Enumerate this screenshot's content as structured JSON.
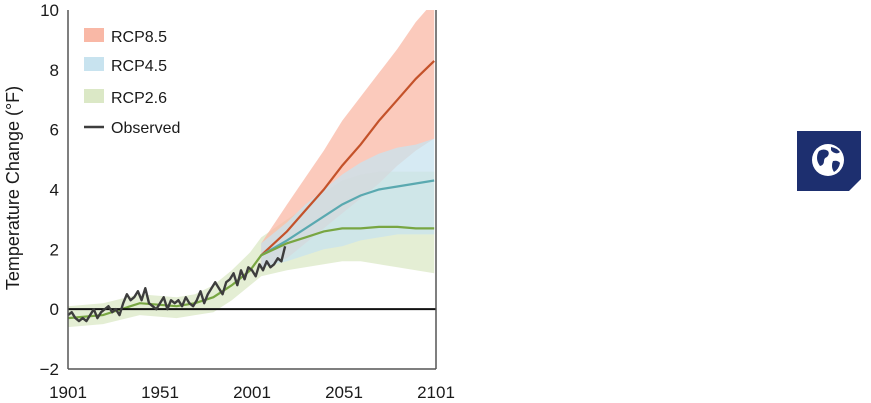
{
  "chart_data": {
    "type": "area",
    "xlabel": "",
    "ylabel": "Temperature Change (°F)",
    "xlim": [
      1901,
      2101
    ],
    "ylim": [
      -2,
      10
    ],
    "xticks": [
      "1901",
      "1951",
      "2001",
      "2051",
      "2101"
    ],
    "yticks": [
      "−2",
      "0",
      "2",
      "4",
      "6",
      "8",
      "10"
    ],
    "baseline": 0,
    "legend_position": "top-left",
    "series": [
      {
        "name": "RCP8.5",
        "line_color": "#c4522a",
        "fill_color": "#f9b8a6",
        "x": [
          2006,
          2020,
          2030,
          2040,
          2050,
          2060,
          2070,
          2080,
          2090,
          2100
        ],
        "y": [
          1.8,
          2.6,
          3.3,
          4.0,
          4.8,
          5.5,
          6.3,
          7.0,
          7.7,
          8.3
        ],
        "upper": [
          2.2,
          3.5,
          4.4,
          5.3,
          6.3,
          7.1,
          7.9,
          8.7,
          9.6,
          10.3
        ],
        "lower": [
          1.4,
          1.7,
          2.2,
          2.7,
          3.2,
          3.7,
          4.2,
          4.8,
          5.3,
          5.7
        ]
      },
      {
        "name": "RCP4.5",
        "line_color": "#5aa9b0",
        "fill_color": "#c8e3ef",
        "x": [
          2006,
          2020,
          2030,
          2040,
          2050,
          2060,
          2070,
          2080,
          2090,
          2100
        ],
        "y": [
          1.8,
          2.3,
          2.7,
          3.1,
          3.5,
          3.8,
          4.0,
          4.1,
          4.2,
          4.3
        ],
        "upper": [
          2.2,
          2.9,
          3.5,
          4.0,
          4.5,
          4.9,
          5.2,
          5.4,
          5.5,
          5.7
        ],
        "lower": [
          1.4,
          1.6,
          1.8,
          2.0,
          2.1,
          2.3,
          2.4,
          2.5,
          2.5,
          2.5
        ]
      },
      {
        "name": "RCP2.6",
        "line_color": "#78a642",
        "fill_color": "#dbe8c6",
        "x": [
          1901,
          1920,
          1940,
          1960,
          1970,
          1980,
          1990,
          2000,
          2006,
          2020,
          2030,
          2040,
          2050,
          2060,
          2070,
          2080,
          2090,
          2100
        ],
        "y": [
          -0.3,
          -0.2,
          0.2,
          0.1,
          0.2,
          0.4,
          0.8,
          1.3,
          1.8,
          2.2,
          2.4,
          2.6,
          2.7,
          2.7,
          2.75,
          2.75,
          2.7,
          2.7
        ],
        "upper": [
          0.1,
          0.2,
          0.5,
          0.4,
          0.5,
          0.8,
          1.3,
          1.9,
          2.4,
          3.0,
          3.4,
          3.9,
          4.3,
          4.5,
          4.6,
          4.6,
          4.6,
          4.6
        ],
        "lower": [
          -0.6,
          -0.5,
          -0.2,
          -0.3,
          -0.2,
          -0.1,
          0.3,
          0.8,
          1.1,
          1.3,
          1.4,
          1.5,
          1.6,
          1.6,
          1.5,
          1.4,
          1.3,
          1.2
        ]
      },
      {
        "name": "Observed",
        "line_color": "#3d3d3d",
        "x": [
          1901,
          1903,
          1905,
          1907,
          1909,
          1911,
          1913,
          1915,
          1917,
          1919,
          1921,
          1923,
          1925,
          1927,
          1929,
          1931,
          1933,
          1935,
          1937,
          1939,
          1941,
          1943,
          1945,
          1947,
          1949,
          1951,
          1953,
          1955,
          1957,
          1959,
          1961,
          1963,
          1965,
          1967,
          1969,
          1971,
          1973,
          1975,
          1977,
          1979,
          1981,
          1983,
          1985,
          1987,
          1989,
          1991,
          1993,
          1995,
          1997,
          1999,
          2001,
          2003,
          2005,
          2007,
          2009,
          2011,
          2013,
          2015,
          2017,
          2019
        ],
        "y": [
          -0.2,
          -0.1,
          -0.3,
          -0.4,
          -0.3,
          -0.4,
          -0.2,
          0.0,
          -0.3,
          -0.1,
          0.0,
          0.1,
          -0.1,
          0.0,
          -0.2,
          0.2,
          0.5,
          0.3,
          0.4,
          0.6,
          0.3,
          0.7,
          0.2,
          0.1,
          0.0,
          0.2,
          0.4,
          0.0,
          0.3,
          0.2,
          0.3,
          0.1,
          0.4,
          0.2,
          0.1,
          0.3,
          0.6,
          0.2,
          0.5,
          0.7,
          0.9,
          0.7,
          0.5,
          0.9,
          1.0,
          1.2,
          0.8,
          1.3,
          1.0,
          1.4,
          1.3,
          1.1,
          1.5,
          1.3,
          1.6,
          1.4,
          1.5,
          1.7,
          1.6,
          2.1
        ]
      }
    ]
  },
  "badge": {
    "icon": "globe-icon",
    "background_color": "#1d2f6f"
  }
}
